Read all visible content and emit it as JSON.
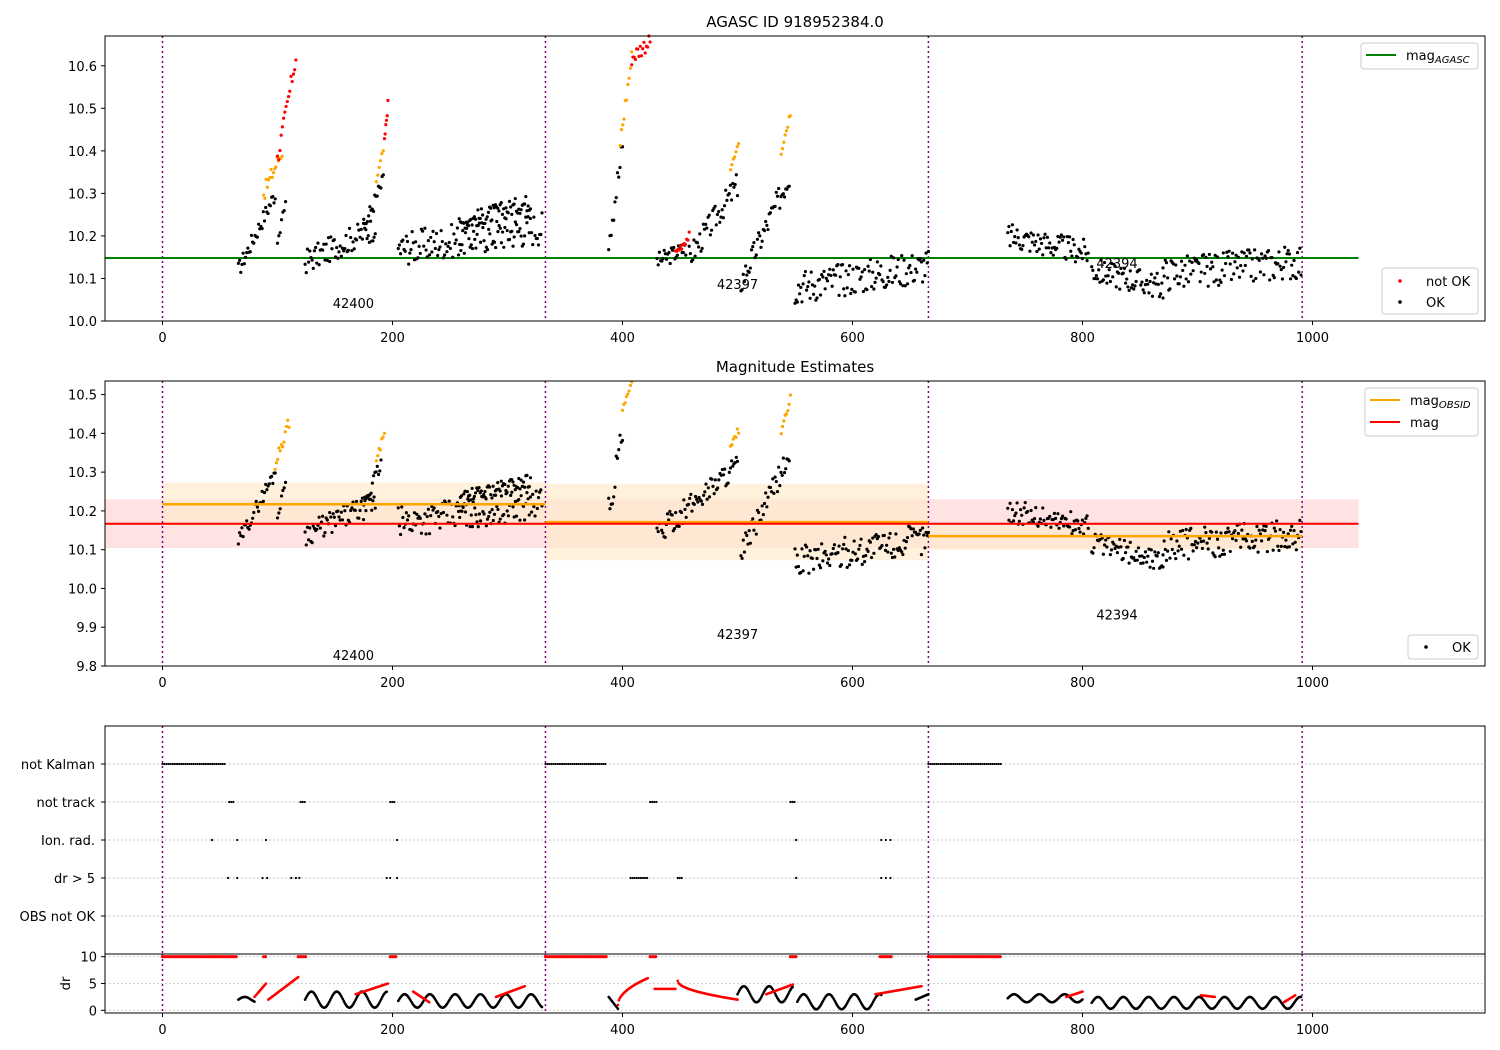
{
  "colors": {
    "ok": "#000000",
    "not_ok": "#ff0000",
    "orange": "#ffa500",
    "agasc_line": "#008000",
    "mag_line": "#ff0000",
    "obs_sep": "#800080",
    "red_band": "#ffd6d6",
    "orange_band": "#ffebcd"
  },
  "chart_data": [
    {
      "type": "scatter",
      "title": "AGASC ID 918952384.0",
      "xlim": [
        -50,
        1150
      ],
      "ylim": [
        10.0,
        10.67
      ],
      "xticks": [
        "0",
        "200",
        "400",
        "600",
        "800",
        "1000"
      ],
      "yticks": [
        "10.0",
        "10.1",
        "10.2",
        "10.3",
        "10.4",
        "10.5",
        "10.6"
      ],
      "grid": false,
      "obs_separators_x": [
        0,
        333,
        666,
        991
      ],
      "obsid_labels": [
        {
          "text": "42400",
          "x": 166,
          "y": 10.03
        },
        {
          "text": "42397",
          "x": 500,
          "y": 10.075
        },
        {
          "text": "42394",
          "x": 830,
          "y": 10.125
        }
      ],
      "mag_agasc": {
        "value": 10.148,
        "x_range": [
          -50,
          1040
        ]
      },
      "legend_top": {
        "position": "top-right",
        "entries": [
          {
            "label": "mag",
            "sub": "AGASC",
            "color": "#008000"
          }
        ]
      },
      "legend_bottom": {
        "position": "bottom-right",
        "entries": [
          {
            "label": "not OK",
            "color": "#ff0000"
          },
          {
            "label": "OK",
            "color": "#000000"
          }
        ]
      },
      "segments": [
        {
          "x0": 66,
          "x1": 98,
          "y0": 10.12,
          "y1": 10.3,
          "color": "ok",
          "noise": 0.02
        },
        {
          "x0": 88,
          "x1": 104,
          "y0": 10.3,
          "y1": 10.4,
          "color": "orange",
          "noise": 0.02
        },
        {
          "x0": 100,
          "x1": 116,
          "y0": 10.38,
          "y1": 10.62,
          "color": "not_ok",
          "noise": 0.02
        },
        {
          "x0": 100,
          "x1": 107,
          "y0": 10.18,
          "y1": 10.28,
          "color": "ok",
          "noise": 0.01
        },
        {
          "x0": 124,
          "x1": 185,
          "y0": 10.14,
          "y1": 10.22,
          "color": "ok",
          "noise": 0.03
        },
        {
          "x0": 175,
          "x1": 192,
          "y0": 10.22,
          "y1": 10.33,
          "color": "ok",
          "noise": 0.02
        },
        {
          "x0": 186,
          "x1": 192,
          "y0": 10.33,
          "y1": 10.4,
          "color": "orange",
          "noise": 0.01
        },
        {
          "x0": 193,
          "x1": 196,
          "y0": 10.42,
          "y1": 10.51,
          "color": "not_ok",
          "noise": 0.01
        },
        {
          "x0": 205,
          "x1": 330,
          "y0": 10.17,
          "y1": 10.22,
          "color": "ok",
          "noise": 0.04
        },
        {
          "x0": 258,
          "x1": 320,
          "y0": 10.23,
          "y1": 10.28,
          "color": "ok",
          "noise": 0.02
        },
        {
          "x0": 388,
          "x1": 400,
          "y0": 10.2,
          "y1": 10.4,
          "color": "ok",
          "noise": 0.04
        },
        {
          "x0": 398,
          "x1": 408,
          "y0": 10.42,
          "y1": 10.62,
          "color": "orange",
          "noise": 0.02
        },
        {
          "x0": 408,
          "x1": 424,
          "y0": 10.62,
          "y1": 10.66,
          "color": "not_ok",
          "noise": 0.02
        },
        {
          "x0": 430,
          "x1": 455,
          "y0": 10.14,
          "y1": 10.17,
          "color": "ok",
          "noise": 0.02
        },
        {
          "x0": 446,
          "x1": 458,
          "y0": 10.16,
          "y1": 10.2,
          "color": "not_ok",
          "noise": 0.01
        },
        {
          "x0": 458,
          "x1": 500,
          "y0": 10.15,
          "y1": 10.32,
          "color": "ok",
          "noise": 0.03
        },
        {
          "x0": 494,
          "x1": 501,
          "y0": 10.36,
          "y1": 10.41,
          "color": "orange",
          "noise": 0.01
        },
        {
          "x0": 503,
          "x1": 545,
          "y0": 10.09,
          "y1": 10.34,
          "color": "ok",
          "noise": 0.03
        },
        {
          "x0": 538,
          "x1": 546,
          "y0": 10.4,
          "y1": 10.49,
          "color": "orange",
          "noise": 0.01
        },
        {
          "x0": 550,
          "x1": 666,
          "y0": 10.08,
          "y1": 10.13,
          "color": "ok",
          "noise": 0.04
        },
        {
          "x0": 735,
          "x1": 805,
          "y0": 10.2,
          "y1": 10.16,
          "color": "ok",
          "noise": 0.03
        },
        {
          "x0": 808,
          "x1": 870,
          "y0": 10.12,
          "y1": 10.08,
          "color": "ok",
          "noise": 0.03
        },
        {
          "x0": 870,
          "x1": 990,
          "y0": 10.11,
          "y1": 10.14,
          "color": "ok",
          "noise": 0.04
        }
      ]
    },
    {
      "type": "scatter",
      "title": "Magnitude Estimates",
      "xlim": [
        -50,
        1150
      ],
      "ylim": [
        9.8,
        10.535
      ],
      "xticks": [
        "0",
        "200",
        "400",
        "600",
        "800",
        "1000"
      ],
      "yticks": [
        "9.8",
        "9.9",
        "10.0",
        "10.1",
        "10.2",
        "10.3",
        "10.4",
        "10.5"
      ],
      "grid": false,
      "obs_separators_x": [
        0,
        333,
        666,
        991
      ],
      "obsid_labels": [
        {
          "text": "42400",
          "x": 166,
          "y": 9.815
        },
        {
          "text": "42397",
          "x": 500,
          "y": 9.87
        },
        {
          "text": "42394",
          "x": 830,
          "y": 9.92
        }
      ],
      "mag": {
        "value": 10.167,
        "band": [
          10.104,
          10.23
        ],
        "x_range": [
          -50,
          1040
        ]
      },
      "mag_obsid": [
        {
          "x_range": [
            0,
            333
          ],
          "value": 10.217,
          "band": [
            10.16,
            10.273
          ]
        },
        {
          "x_range": [
            333,
            666
          ],
          "value": 10.171,
          "band": [
            10.073,
            10.27
          ]
        },
        {
          "x_range": [
            666,
            991
          ],
          "value": 10.135,
          "band": [
            10.1,
            10.168
          ]
        }
      ],
      "legend_top": {
        "position": "top-right",
        "entries": [
          {
            "label": "mag",
            "sub": "OBSID",
            "color": "#ffa500"
          },
          {
            "label": "mag",
            "sub": "",
            "color": "#ff0000"
          }
        ]
      },
      "legend_bottom": {
        "position": "bottom-right",
        "entries": [
          {
            "label": "OK",
            "color": "#000000"
          }
        ]
      },
      "segments": [
        {
          "x0": 66,
          "x1": 98,
          "y0": 10.12,
          "y1": 10.3,
          "color": "ok",
          "noise": 0.02
        },
        {
          "x0": 98,
          "x1": 110,
          "y0": 10.32,
          "y1": 10.43,
          "color": "orange",
          "noise": 0.015
        },
        {
          "x0": 100,
          "x1": 107,
          "y0": 10.18,
          "y1": 10.28,
          "color": "ok",
          "noise": 0.01
        },
        {
          "x0": 124,
          "x1": 185,
          "y0": 10.14,
          "y1": 10.22,
          "color": "ok",
          "noise": 0.03
        },
        {
          "x0": 175,
          "x1": 190,
          "y0": 10.22,
          "y1": 10.32,
          "color": "ok",
          "noise": 0.02
        },
        {
          "x0": 186,
          "x1": 193,
          "y0": 10.33,
          "y1": 10.4,
          "color": "orange",
          "noise": 0.01
        },
        {
          "x0": 205,
          "x1": 330,
          "y0": 10.17,
          "y1": 10.22,
          "color": "ok",
          "noise": 0.04
        },
        {
          "x0": 258,
          "x1": 320,
          "y0": 10.23,
          "y1": 10.28,
          "color": "ok",
          "noise": 0.02
        },
        {
          "x0": 388,
          "x1": 400,
          "y0": 10.2,
          "y1": 10.4,
          "color": "ok",
          "noise": 0.04
        },
        {
          "x0": 400,
          "x1": 408,
          "y0": 10.46,
          "y1": 10.53,
          "color": "orange",
          "noise": 0.005
        },
        {
          "x0": 430,
          "x1": 500,
          "y0": 10.14,
          "y1": 10.32,
          "color": "ok",
          "noise": 0.03
        },
        {
          "x0": 494,
          "x1": 501,
          "y0": 10.36,
          "y1": 10.41,
          "color": "orange",
          "noise": 0.01
        },
        {
          "x0": 503,
          "x1": 545,
          "y0": 10.09,
          "y1": 10.34,
          "color": "ok",
          "noise": 0.03
        },
        {
          "x0": 538,
          "x1": 546,
          "y0": 10.4,
          "y1": 10.49,
          "color": "orange",
          "noise": 0.01
        },
        {
          "x0": 550,
          "x1": 666,
          "y0": 10.07,
          "y1": 10.13,
          "color": "ok",
          "noise": 0.04
        },
        {
          "x0": 735,
          "x1": 805,
          "y0": 10.2,
          "y1": 10.16,
          "color": "ok",
          "noise": 0.03
        },
        {
          "x0": 808,
          "x1": 870,
          "y0": 10.12,
          "y1": 10.07,
          "color": "ok",
          "noise": 0.03
        },
        {
          "x0": 870,
          "x1": 990,
          "y0": 10.11,
          "y1": 10.14,
          "color": "ok",
          "noise": 0.04
        }
      ]
    },
    {
      "type": "scatter",
      "title": "",
      "xlim": [
        -50,
        1150
      ],
      "categories": [
        "not Kalman",
        "not track",
        "Ion. rad.",
        "dr > 5",
        "OBS not OK"
      ],
      "grid": true,
      "obs_separators_x": [
        0,
        333,
        666,
        991
      ],
      "flags": [
        {
          "row": "not Kalman",
          "ranges": [
            [
              0,
              55
            ],
            [
              333,
              387
            ],
            [
              666,
              730
            ]
          ]
        },
        {
          "row": "not track",
          "ranges": [
            [
              58,
              63
            ],
            [
              120,
              125
            ],
            [
              198,
              203
            ],
            [
              424,
              430
            ],
            [
              546,
              551
            ]
          ]
        },
        {
          "row": "Ion. rad.",
          "points": [
            43,
            65,
            90,
            204,
            551,
            625,
            629,
            633
          ]
        },
        {
          "row": "dr > 5",
          "points": [
            57,
            65,
            87,
            91,
            112,
            116,
            119,
            195,
            198,
            204,
            551,
            625,
            629,
            633
          ],
          "ranges": [
            [
              407,
              422
            ],
            [
              448,
              453
            ]
          ]
        }
      ]
    },
    {
      "type": "scatter",
      "title": "",
      "xlim": [
        -50,
        1150
      ],
      "ylim": [
        -0.5,
        10.5
      ],
      "ylabel": "dr",
      "yticks": [
        "0",
        "5",
        "10"
      ],
      "xticks": [
        "0",
        "200",
        "400",
        "600",
        "800",
        "1000"
      ],
      "obs_separators_x": [
        0,
        333,
        666,
        991
      ],
      "red_at_10": [
        [
          0,
          65
        ],
        [
          88,
          91
        ],
        [
          118,
          125
        ],
        [
          198,
          204
        ],
        [
          333,
          387
        ],
        [
          424,
          430
        ],
        [
          546,
          552
        ],
        [
          624,
          634
        ],
        [
          666,
          730
        ]
      ],
      "segments": [
        {
          "x0": 66,
          "x1": 80,
          "y0": 1.5,
          "y1": 2.5,
          "color": "ok",
          "shape": "wave"
        },
        {
          "x0": 80,
          "x1": 90,
          "y0": 2.5,
          "y1": 5.0,
          "color": "not_ok",
          "shape": "line"
        },
        {
          "x0": 92,
          "x1": 118,
          "y0": 2.0,
          "y1": 6.2,
          "color": "not_ok",
          "shape": "line"
        },
        {
          "x0": 124,
          "x1": 195,
          "y0": 0.5,
          "y1": 3.5,
          "color": "ok",
          "shape": "wave"
        },
        {
          "x0": 168,
          "x1": 196,
          "y0": 3.0,
          "y1": 5.0,
          "color": "not_ok",
          "shape": "line"
        },
        {
          "x0": 205,
          "x1": 330,
          "y0": 0.5,
          "y1": 3.0,
          "color": "ok",
          "shape": "wave"
        },
        {
          "x0": 218,
          "x1": 232,
          "y0": 3.5,
          "y1": 1.5,
          "color": "not_ok",
          "shape": "line"
        },
        {
          "x0": 290,
          "x1": 315,
          "y0": 2.5,
          "y1": 4.5,
          "color": "not_ok",
          "shape": "line"
        },
        {
          "x0": 388,
          "x1": 396,
          "y0": 2.5,
          "y1": 0.3,
          "color": "ok",
          "shape": "line"
        },
        {
          "x0": 396,
          "x1": 422,
          "y0": 1.0,
          "y1": 6.0,
          "color": "not_ok",
          "shape": "curve"
        },
        {
          "x0": 428,
          "x1": 446,
          "y0": 4.0,
          "y1": 4.0,
          "color": "not_ok",
          "shape": "line"
        },
        {
          "x0": 448,
          "x1": 500,
          "y0": 5.5,
          "y1": 2.0,
          "color": "not_ok",
          "shape": "curve"
        },
        {
          "x0": 500,
          "x1": 548,
          "y0": 1.5,
          "y1": 4.5,
          "color": "ok",
          "shape": "wave"
        },
        {
          "x0": 525,
          "x1": 548,
          "y0": 3.0,
          "y1": 4.8,
          "color": "not_ok",
          "shape": "line"
        },
        {
          "x0": 552,
          "x1": 625,
          "y0": 0.2,
          "y1": 3.0,
          "color": "ok",
          "shape": "wave"
        },
        {
          "x0": 620,
          "x1": 660,
          "y0": 3.0,
          "y1": 4.5,
          "color": "not_ok",
          "shape": "line"
        },
        {
          "x0": 655,
          "x1": 666,
          "y0": 2.0,
          "y1": 3.0,
          "color": "ok",
          "shape": "line"
        },
        {
          "x0": 735,
          "x1": 800,
          "y0": 1.5,
          "y1": 3.0,
          "color": "ok",
          "shape": "wave"
        },
        {
          "x0": 786,
          "x1": 800,
          "y0": 2.5,
          "y1": 3.5,
          "color": "not_ok",
          "shape": "line"
        },
        {
          "x0": 808,
          "x1": 990,
          "y0": 0.3,
          "y1": 2.5,
          "color": "ok",
          "shape": "wave"
        },
        {
          "x0": 903,
          "x1": 915,
          "y0": 2.8,
          "y1": 2.5,
          "color": "not_ok",
          "shape": "line"
        },
        {
          "x0": 975,
          "x1": 985,
          "y0": 1.5,
          "y1": 2.8,
          "color": "not_ok",
          "shape": "line"
        }
      ]
    }
  ]
}
